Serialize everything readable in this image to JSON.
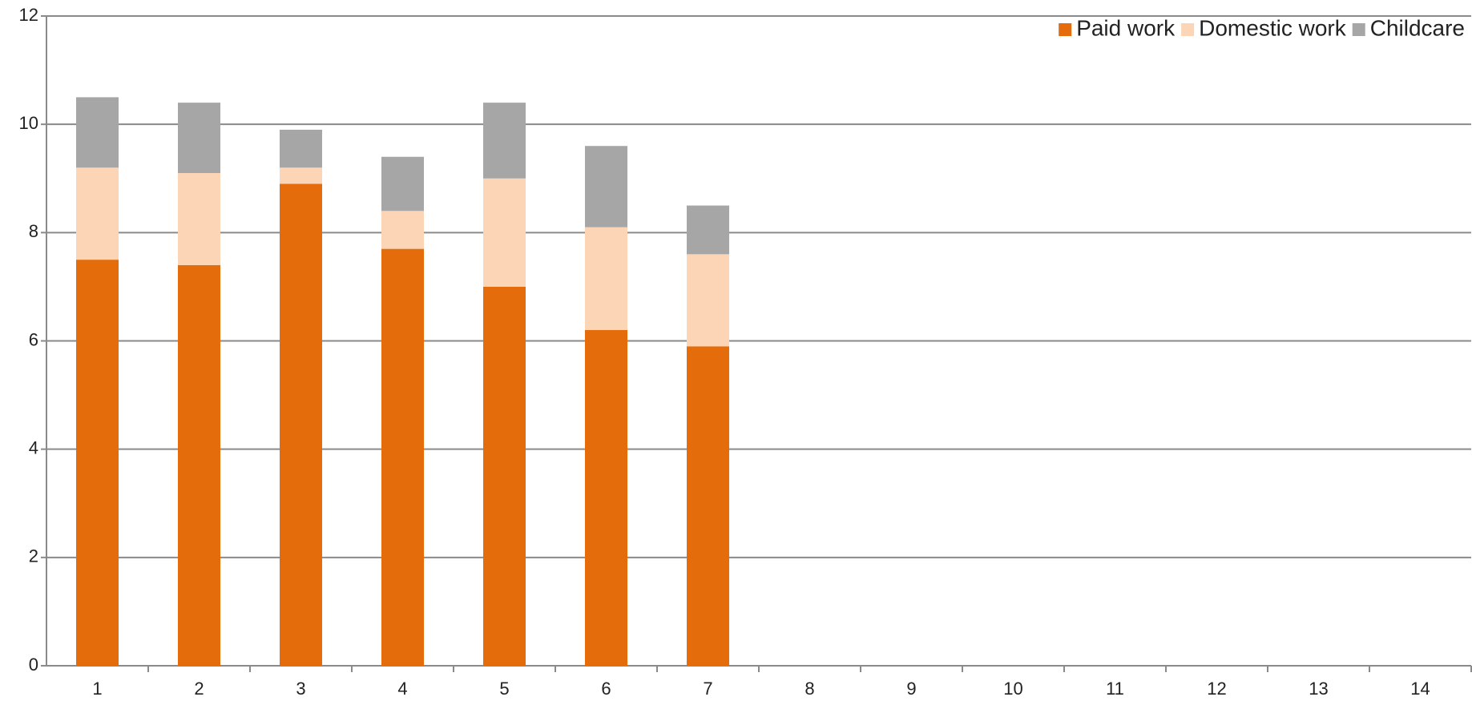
{
  "chart_data": {
    "type": "stacked_bar",
    "categories": [
      "1",
      "2",
      "3",
      "4",
      "5",
      "6",
      "7",
      "8",
      "9",
      "10",
      "11",
      "12",
      "13",
      "14"
    ],
    "series": [
      {
        "name": "Paid work",
        "color": "#e46c0a",
        "values": [
          7.5,
          7.4,
          8.9,
          7.7,
          7.0,
          6.2,
          5.9,
          null,
          null,
          null,
          null,
          null,
          null,
          null
        ]
      },
      {
        "name": "Domestic work",
        "color": "#fbd5b5",
        "values": [
          1.7,
          1.7,
          0.3,
          0.7,
          2.0,
          1.9,
          1.7,
          null,
          null,
          null,
          null,
          null,
          null,
          null
        ]
      },
      {
        "name": "Childcare",
        "color": "#a6a6a6",
        "values": [
          1.3,
          1.3,
          0.7,
          1.0,
          1.4,
          1.5,
          0.9,
          null,
          null,
          null,
          null,
          null,
          null,
          null
        ]
      }
    ],
    "ylim": [
      0,
      12
    ],
    "yticks": [
      0,
      2,
      4,
      6,
      8,
      10,
      12
    ],
    "grid": true
  }
}
